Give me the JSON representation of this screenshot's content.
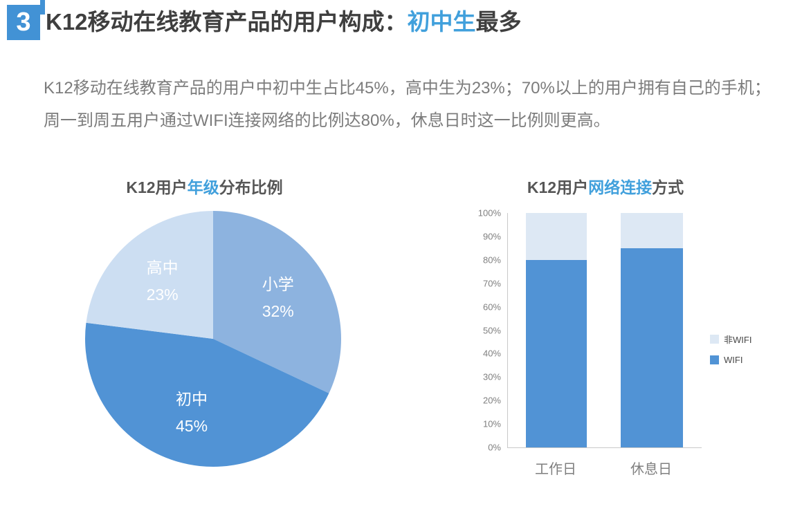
{
  "header": {
    "badge": "3",
    "title_prefix": "K12移动在线教育产品的用户构成：",
    "title_highlight": "初中生",
    "title_suffix": "最多"
  },
  "body": {
    "text": "K12移动在线教育产品的用户中初中生占比45%，高中生为23%；70%以上的用户拥有自己的手机；周一到周五用户通过WIFI连接网络的比例达80%，休息日时这一比例则更高。"
  },
  "colors": {
    "accent_badge": "#4292D5",
    "accent_text": "#41A0DC",
    "title_dark": "#3F3F3F",
    "body_gray": "#7C7C7C",
    "chart_title_gray": "#565656",
    "axis_line": "#C9C9C9"
  },
  "chart_data": [
    {
      "type": "pie",
      "title": {
        "prefix": "K12用户",
        "highlight": "年级",
        "suffix": "分布比例"
      },
      "labels": [
        "小学",
        "初中",
        "高中"
      ],
      "values": [
        32,
        45,
        23
      ],
      "colors": [
        "#8DB3DF",
        "#5193D5",
        "#CCDEF2"
      ],
      "start_angle_deg_from_top": 0,
      "direction": "clockwise",
      "label_style": "name and percent inside slice, white text"
    },
    {
      "type": "bar",
      "stacked": true,
      "title": {
        "prefix": "K12用户",
        "highlight": "网络连接",
        "suffix": "方式"
      },
      "categories": [
        "工作日",
        "休息日"
      ],
      "series": [
        {
          "name": "WIFI",
          "values": [
            80,
            85
          ],
          "color": "#5193D5"
        },
        {
          "name": "非WIFI",
          "values": [
            20,
            15
          ],
          "color": "#DDE8F4"
        }
      ],
      "ylim": [
        0,
        100
      ],
      "yticks": [
        "100%",
        "90%",
        "80%",
        "70%",
        "60%",
        "50%",
        "40%",
        "30%",
        "20%",
        "10%",
        "0%"
      ],
      "legend": [
        {
          "label": "非WIFI",
          "color": "#DDE8F4"
        },
        {
          "label": "WIFI",
          "color": "#5193D5"
        }
      ],
      "legend_position": "right",
      "grid": false
    }
  ]
}
